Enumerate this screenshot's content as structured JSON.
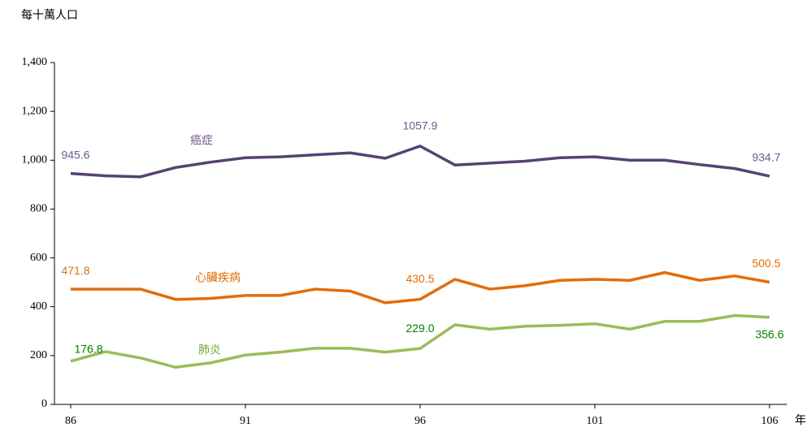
{
  "chart_data": {
    "type": "line",
    "y_label": "每十萬人口",
    "x_label": "年",
    "x": [
      86,
      87,
      88,
      89,
      90,
      91,
      92,
      93,
      94,
      95,
      96,
      97,
      98,
      99,
      100,
      101,
      102,
      103,
      104,
      105,
      106
    ],
    "xlim": [
      85.5,
      106.5
    ],
    "xticks": [
      86,
      91,
      96,
      101,
      106
    ],
    "ylim": [
      0,
      1400
    ],
    "yticks": [
      0,
      200,
      400,
      600,
      800,
      {
        "value": 1000,
        "label": "1,000"
      },
      {
        "value": 1200,
        "label": "1,200"
      },
      {
        "value": 1400,
        "label": "1,400"
      }
    ],
    "grid": false,
    "series": [
      {
        "name": "癌症",
        "color": "#574273",
        "label_color": "#6f5a8f",
        "values": [
          945.6,
          936,
          932,
          970,
          992,
          1010,
          1014,
          1022,
          1030,
          1008,
          1057.9,
          980,
          988,
          996,
          1010,
          1014,
          1000,
          1000,
          982,
          966,
          934.7
        ],
        "value_labels": [
          "945.6",
          null,
          null,
          null,
          null,
          null,
          null,
          null,
          null,
          null,
          "1057.9",
          null,
          null,
          null,
          null,
          null,
          null,
          null,
          null,
          null,
          "934.7"
        ]
      },
      {
        "name": "心臟疾病",
        "color": "#e36c0a",
        "label_color": "#e36c0a",
        "values": [
          471.8,
          472,
          472,
          430,
          434,
          446,
          446,
          472,
          464,
          416,
          430.5,
          512,
          472,
          486,
          508,
          512,
          508,
          540,
          508,
          526,
          500.5
        ],
        "value_labels": [
          "471.8",
          null,
          null,
          null,
          null,
          null,
          null,
          null,
          null,
          null,
          "430.5",
          null,
          null,
          null,
          null,
          null,
          null,
          null,
          null,
          null,
          "500.5"
        ]
      },
      {
        "name": "肺炎",
        "color": "#9bbb59",
        "label_color": "#008000",
        "values": [
          176.8,
          216,
          190,
          152,
          170,
          202,
          214,
          230,
          230,
          214,
          229.0,
          326,
          308,
          320,
          324,
          330,
          308,
          340,
          340,
          364,
          356.6
        ],
        "value_labels": [
          "176.8",
          null,
          null,
          null,
          null,
          null,
          null,
          null,
          null,
          null,
          "229.0",
          null,
          null,
          null,
          null,
          null,
          null,
          null,
          null,
          null,
          "356.6"
        ]
      }
    ]
  }
}
